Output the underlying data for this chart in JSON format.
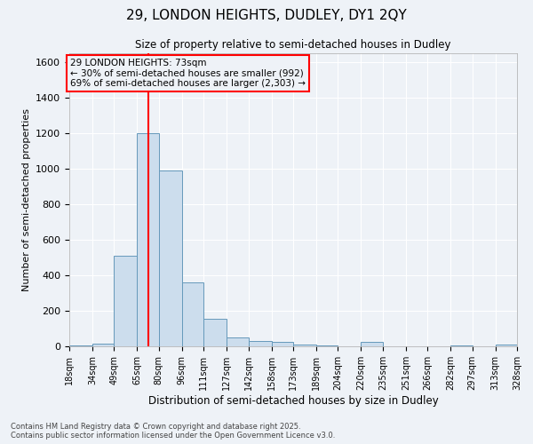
{
  "title1": "29, LONDON HEIGHTS, DUDLEY, DY1 2QY",
  "title2": "Size of property relative to semi-detached houses in Dudley",
  "xlabel": "Distribution of semi-detached houses by size in Dudley",
  "ylabel": "Number of semi-detached properties",
  "footer1": "Contains HM Land Registry data © Crown copyright and database right 2025.",
  "footer2": "Contains public sector information licensed under the Open Government Licence v3.0.",
  "annotation_title": "29 LONDON HEIGHTS: 73sqm",
  "annotation_line1": "← 30% of semi-detached houses are smaller (992)",
  "annotation_line2": "69% of semi-detached houses are larger (2,303) →",
  "property_size": 73,
  "bar_color": "#ccdded",
  "bar_edge_color": "#6699bb",
  "vline_color": "red",
  "annotation_box_color": "red",
  "bins": [
    18,
    34,
    49,
    65,
    80,
    96,
    111,
    127,
    142,
    158,
    173,
    189,
    204,
    220,
    235,
    251,
    266,
    282,
    297,
    313,
    328
  ],
  "counts": [
    5,
    15,
    510,
    1200,
    990,
    360,
    155,
    50,
    30,
    25,
    10,
    5,
    2,
    25,
    2,
    1,
    0,
    5,
    0,
    8
  ],
  "ylim": [
    0,
    1650
  ],
  "yticks": [
    0,
    200,
    400,
    600,
    800,
    1000,
    1200,
    1400,
    1600
  ],
  "background_color": "#eef2f7",
  "grid_color": "#ffffff"
}
